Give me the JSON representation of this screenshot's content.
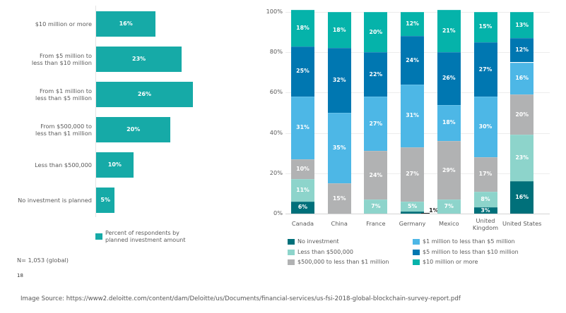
{
  "chart_data": [
    {
      "type": "bar",
      "orientation": "horizontal",
      "title": "",
      "categories": [
        "$10 million or more",
        "From $5 million to less than $10 million",
        "From $1 million to less than $5 million",
        "From $500,000 to less than $1 million",
        "Less than $500,000",
        "No investment is planned"
      ],
      "category_lines": [
        [
          "$10 million or more"
        ],
        [
          "From $5 million to",
          "less than $10 million"
        ],
        [
          "From $1 million to",
          "less than $5 million"
        ],
        [
          "From $500,000 to",
          "less than $1 million"
        ],
        [
          "Less than $500,000"
        ],
        [
          "No investment is planned"
        ]
      ],
      "values": [
        16,
        23,
        26,
        20,
        10,
        5
      ],
      "value_labels": [
        "16%",
        "23%",
        "26%",
        "20%",
        "10%",
        "5%"
      ],
      "color": "#16aaa7",
      "legend": {
        "label_lines": [
          "Percent of respondents by",
          "planned investment amount"
        ],
        "placement": "bottom"
      },
      "xlabel": "",
      "ylabel": "",
      "note": "N= 1,053 (global)"
    },
    {
      "type": "bar",
      "stacked": true,
      "title": "",
      "categories": [
        "Canada",
        "China",
        "France",
        "Germany",
        "Mexico",
        "United Kingdom",
        "United States"
      ],
      "category_lines": [
        [
          "Canada"
        ],
        [
          "China"
        ],
        [
          "France"
        ],
        [
          "Germany"
        ],
        [
          "Mexico"
        ],
        [
          "United",
          "Kingdom"
        ],
        [
          "United States"
        ]
      ],
      "ylim": [
        0,
        100
      ],
      "yticks": [
        "0%",
        "20%",
        "40%",
        "60%",
        "80%",
        "100%"
      ],
      "ytick_values": [
        0,
        20,
        40,
        60,
        80,
        100
      ],
      "grid": true,
      "legend_placement": "bottom",
      "series": [
        {
          "name": "No investment",
          "color": "#00707a",
          "values": [
            6,
            0,
            0,
            1,
            0,
            3,
            16
          ]
        },
        {
          "name": "Less than $500,000",
          "color": "#8dd4cb",
          "values": [
            11,
            0,
            7,
            5,
            7,
            8,
            23
          ]
        },
        {
          "name": "$500,000 to less than $1 million",
          "color": "#b1b2b3",
          "values": [
            10,
            15,
            24,
            27,
            29,
            17,
            20
          ]
        },
        {
          "name": "$1 million to less than $5 million",
          "color": "#4db7e6",
          "values": [
            31,
            35,
            27,
            31,
            18,
            30,
            16
          ]
        },
        {
          "name": "$5 million to less than $10 million",
          "color": "#0077b1",
          "values": [
            25,
            32,
            22,
            24,
            26,
            27,
            12
          ]
        },
        {
          "name": "$10 million or more",
          "color": "#05b3aa",
          "values": [
            18,
            18,
            20,
            12,
            21,
            15,
            13
          ]
        }
      ],
      "legend_order": [
        0,
        3,
        1,
        4,
        2,
        5
      ],
      "callout": {
        "category": "Germany",
        "series": "No investment",
        "label": "1%"
      }
    }
  ],
  "page": {
    "page_number": "18",
    "source": "Image Source:  https://www2.deloitte.com/content/dam/Deloitte/us/Documents/financial-services/us-fsi-2018-global-blockchain-survey-report.pdf"
  }
}
